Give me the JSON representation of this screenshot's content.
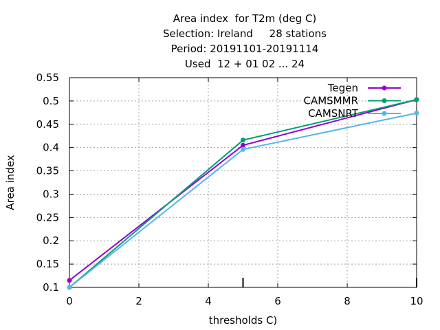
{
  "chart_data": {
    "type": "line",
    "title_lines": [
      "Area index  for T2m (deg C)",
      "Selection: Ireland     28 stations",
      "Period: 20191101-20191114",
      "Used  12 + 01 02 ... 24"
    ],
    "xlabel": "thresholds C)",
    "ylabel": "Area index",
    "xlim": [
      0,
      10
    ],
    "ylim": [
      0.1,
      0.55
    ],
    "x_ticks": [
      0,
      2,
      4,
      6,
      8,
      10
    ],
    "y_ticks": [
      0.1,
      0.15,
      0.2,
      0.25,
      0.3,
      0.35,
      0.4,
      0.45,
      0.5,
      0.55
    ],
    "grid": true,
    "legend_position": "top-right",
    "series": [
      {
        "name": "Tegen",
        "color": "#9400d3",
        "x": [
          0,
          5,
          10
        ],
        "y": [
          0.115,
          0.405,
          0.503
        ]
      },
      {
        "name": "CAMSMMR",
        "color": "#009e73",
        "x": [
          0,
          5,
          10
        ],
        "y": [
          0.1,
          0.416,
          0.503
        ]
      },
      {
        "name": "CAMSNRT",
        "color": "#56b4e9",
        "x": [
          0,
          5,
          10
        ],
        "y": [
          0.1,
          0.396,
          0.474
        ]
      }
    ]
  }
}
